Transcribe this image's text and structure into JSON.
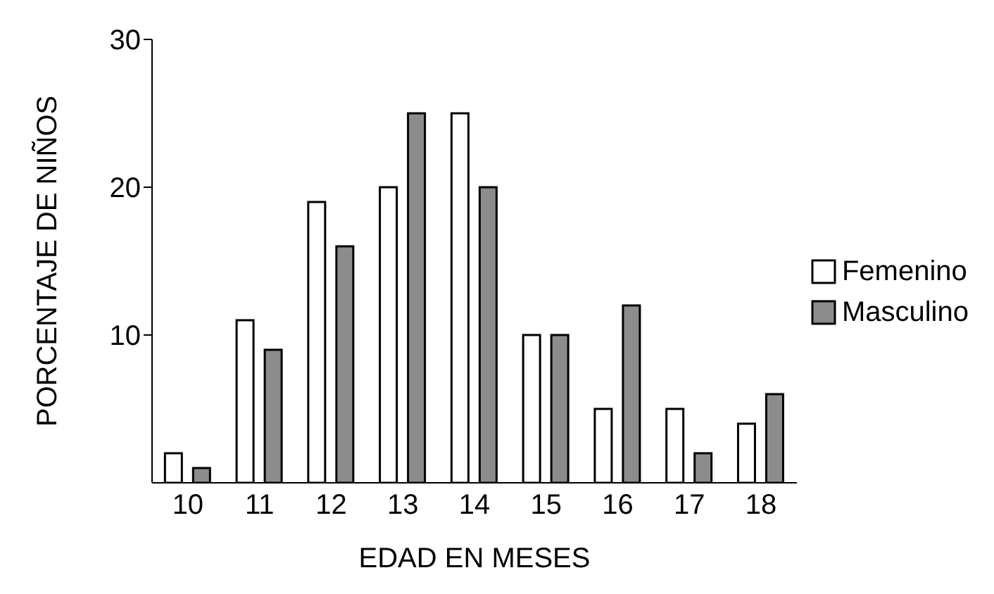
{
  "chart_data": {
    "type": "bar",
    "xlabel": "EDAD EN MESES",
    "ylabel": "PORCENTAJE DE NIÑOS",
    "categories": [
      "10",
      "11",
      "12",
      "13",
      "14",
      "15",
      "16",
      "17",
      "18"
    ],
    "series": [
      {
        "name": "Femenino",
        "color": "#ffffff",
        "values": [
          2,
          11,
          19,
          20,
          25,
          10,
          5,
          5,
          4
        ]
      },
      {
        "name": "Masculino",
        "color": "#8c8c8c",
        "values": [
          1,
          9,
          16,
          25,
          20,
          10,
          12,
          2,
          6
        ]
      }
    ],
    "ylim": [
      0,
      30
    ],
    "yticks": [
      10,
      20,
      30
    ],
    "grid": false,
    "legend": "right"
  }
}
